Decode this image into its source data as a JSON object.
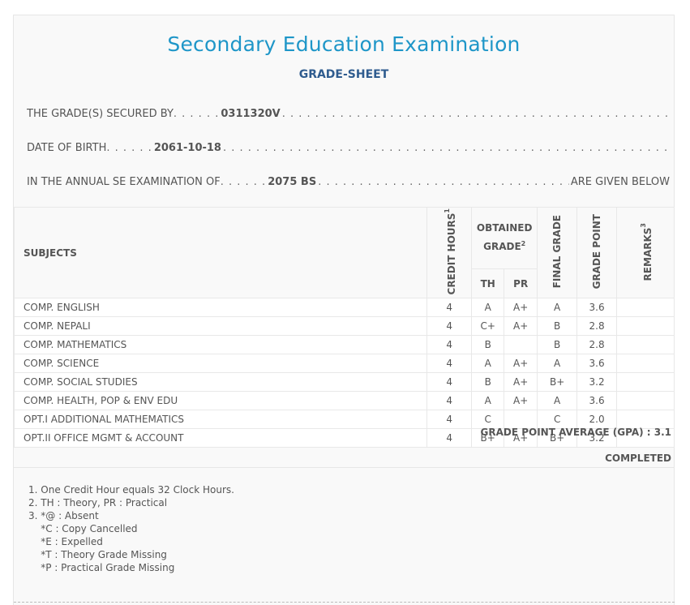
{
  "header": {
    "title": "Secondary Education Examination",
    "subtitle": "GRADE-SHEET"
  },
  "info": {
    "secured_label": "THE GRADE(S) SECURED BY",
    "secured_value": "0311320V",
    "dob_label": "DATE OF BIRTH",
    "dob_value": "2061-10-18",
    "exam_label": "IN THE ANNUAL SE EXAMINATION OF",
    "exam_value": "2075 BS",
    "exam_tail": "ARE GIVEN BELOW"
  },
  "table": {
    "headers": {
      "subjects": "SUBJECTS",
      "credit_hours": "CREDIT HOURS",
      "credit_sup": "1",
      "obtained_grade": "OBTAINED GRADE",
      "obtained_sup": "2",
      "th": "TH",
      "pr": "PR",
      "final_grade": "FINAL GRADE",
      "grade_point": "GRADE POINT",
      "remarks": "REMARKS",
      "remarks_sup": "3"
    },
    "rows": [
      {
        "subject": "COMP. ENGLISH",
        "credit": "4",
        "th": "A",
        "pr": "A+",
        "final": "A",
        "gp": "3.6",
        "remarks": ""
      },
      {
        "subject": "COMP. NEPALI",
        "credit": "4",
        "th": "C+",
        "pr": "A+",
        "final": "B",
        "gp": "2.8",
        "remarks": ""
      },
      {
        "subject": "COMP. MATHEMATICS",
        "credit": "4",
        "th": "B",
        "pr": "",
        "final": "B",
        "gp": "2.8",
        "remarks": ""
      },
      {
        "subject": "COMP. SCIENCE",
        "credit": "4",
        "th": "A",
        "pr": "A+",
        "final": "A",
        "gp": "3.6",
        "remarks": ""
      },
      {
        "subject": "COMP. SOCIAL STUDIES",
        "credit": "4",
        "th": "B",
        "pr": "A+",
        "final": "B+",
        "gp": "3.2",
        "remarks": ""
      },
      {
        "subject": "COMP. HEALTH, POP & ENV EDU",
        "credit": "4",
        "th": "A",
        "pr": "A+",
        "final": "A",
        "gp": "3.6",
        "remarks": ""
      },
      {
        "subject": "OPT.I ADDITIONAL MATHEMATICS",
        "credit": "4",
        "th": "C",
        "pr": "",
        "final": "C",
        "gp": "2.0",
        "remarks": ""
      },
      {
        "subject": "OPT.II OFFICE MGMT & ACCOUNT",
        "credit": "4",
        "th": "B+",
        "pr": "A+",
        "final": "B+",
        "gp": "3.2",
        "remarks": ""
      }
    ]
  },
  "summary": {
    "gpa_text": "GRADE POINT AVERAGE (GPA) : 3.1",
    "status": "COMPLETED"
  },
  "notes": [
    "1. One Credit Hour equals 32 Clock Hours.",
    "2. TH : Theory, PR : Practical",
    "3. *@ : Absent",
    "    *C : Copy Cancelled",
    "    *E : Expelled",
    "    *T : Theory Grade Missing",
    "    *P : Practical Grade Missing"
  ]
}
